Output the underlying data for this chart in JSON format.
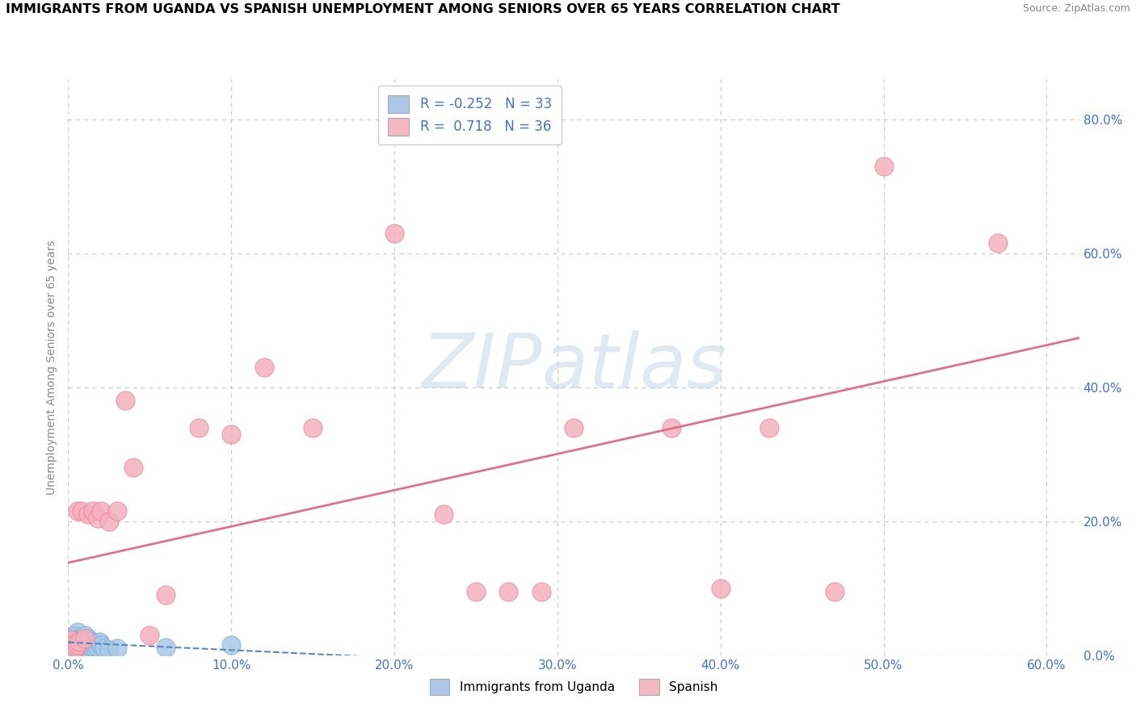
{
  "title": "IMMIGRANTS FROM UGANDA VS SPANISH UNEMPLOYMENT AMONG SENIORS OVER 65 YEARS CORRELATION CHART",
  "source": "Source: ZipAtlas.com",
  "ylabel": "Unemployment Among Seniors over 65 years",
  "xlim": [
    0.0,
    0.62
  ],
  "ylim": [
    0.0,
    0.86
  ],
  "xtick_vals": [
    0.0,
    0.1,
    0.2,
    0.3,
    0.4,
    0.5,
    0.6
  ],
  "ytick_vals": [
    0.0,
    0.2,
    0.4,
    0.6,
    0.8
  ],
  "background_color": "#ffffff",
  "grid_color": "#c8c8c8",
  "watermark_text": "ZIPatlas",
  "legend_bottom": [
    "Immigrants from Uganda",
    "Spanish"
  ],
  "legend_bottom_colors": [
    "#aec6e8",
    "#f4b8c1"
  ],
  "uganda_color": "#aac8e8",
  "uganda_edge": "#7aaed4",
  "uganda_trend_color": "#5588bb",
  "uganda_R": -0.252,
  "uganda_N": 33,
  "spanish_color": "#f4b0c0",
  "spanish_edge": "#e88090",
  "spanish_trend_color": "#e07090",
  "spanish_R": 0.718,
  "spanish_N": 36,
  "uganda_x": [
    0.001,
    0.002,
    0.003,
    0.003,
    0.004,
    0.004,
    0.005,
    0.005,
    0.006,
    0.006,
    0.007,
    0.007,
    0.008,
    0.008,
    0.009,
    0.01,
    0.01,
    0.011,
    0.011,
    0.012,
    0.013,
    0.014,
    0.015,
    0.016,
    0.017,
    0.018,
    0.019,
    0.02,
    0.022,
    0.025,
    0.03,
    0.06,
    0.1
  ],
  "uganda_y": [
    0.018,
    0.022,
    0.015,
    0.025,
    0.02,
    0.03,
    0.012,
    0.028,
    0.018,
    0.035,
    0.01,
    0.025,
    0.015,
    0.022,
    0.02,
    0.008,
    0.03,
    0.012,
    0.018,
    0.025,
    0.015,
    0.02,
    0.01,
    0.015,
    0.008,
    0.012,
    0.02,
    0.015,
    0.01,
    0.008,
    0.01,
    0.012,
    0.015
  ],
  "spanish_x": [
    0.001,
    0.002,
    0.003,
    0.004,
    0.005,
    0.006,
    0.006,
    0.007,
    0.008,
    0.01,
    0.012,
    0.015,
    0.018,
    0.02,
    0.025,
    0.03,
    0.035,
    0.04,
    0.05,
    0.06,
    0.08,
    0.1,
    0.12,
    0.15,
    0.2,
    0.23,
    0.25,
    0.27,
    0.29,
    0.31,
    0.37,
    0.4,
    0.43,
    0.47,
    0.5,
    0.57
  ],
  "spanish_y": [
    0.018,
    0.022,
    0.015,
    0.008,
    0.012,
    0.015,
    0.215,
    0.02,
    0.215,
    0.025,
    0.21,
    0.215,
    0.205,
    0.215,
    0.2,
    0.215,
    0.38,
    0.28,
    0.03,
    0.09,
    0.34,
    0.33,
    0.43,
    0.34,
    0.63,
    0.21,
    0.095,
    0.095,
    0.095,
    0.34,
    0.34,
    0.1,
    0.34,
    0.095,
    0.73,
    0.615
  ]
}
